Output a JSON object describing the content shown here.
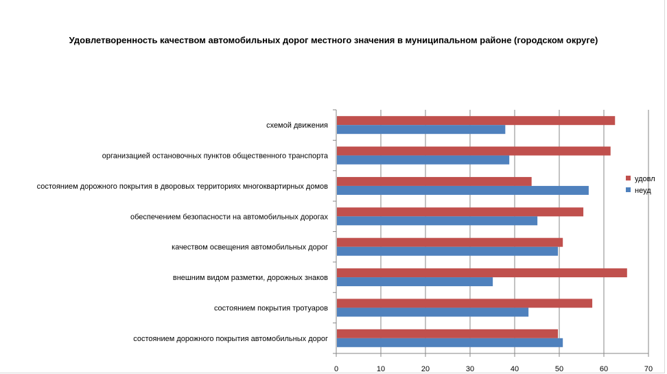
{
  "chart_data": {
    "type": "bar",
    "orientation": "horizontal",
    "title": "Удовлетворенность качеством автомобильных дорог местного значения в муниципальном районе (городском округе)",
    "categories": [
      "схемой движения",
      "организацией остановочных пунктов общественного транспорта",
      "состоянием дорожного покрытия в дворовых территориях многоквартирных домов",
      "обеспечением безопасности на автомобильных дорогах",
      "качеством освещения автомобильных дорог",
      "внешним видом разметки, дорожных знаков",
      "состоянием покрытия тротуаров",
      "состоянием дорожного покрытия автомобильных дорог"
    ],
    "series": [
      {
        "name": "удовл",
        "color": "#c0504d",
        "values": [
          62.5,
          61.5,
          43.8,
          55.4,
          50.8,
          65.2,
          57.4,
          49.7
        ]
      },
      {
        "name": "неуд",
        "color": "#4f81bd",
        "values": [
          37.9,
          38.8,
          56.6,
          45.1,
          49.7,
          35.1,
          43.1,
          50.8
        ]
      }
    ],
    "xlim": [
      0,
      70
    ],
    "xticks": [
      "0",
      "10",
      "20",
      "30",
      "40",
      "50",
      "60",
      "70"
    ],
    "grid": true,
    "legend": "right"
  }
}
